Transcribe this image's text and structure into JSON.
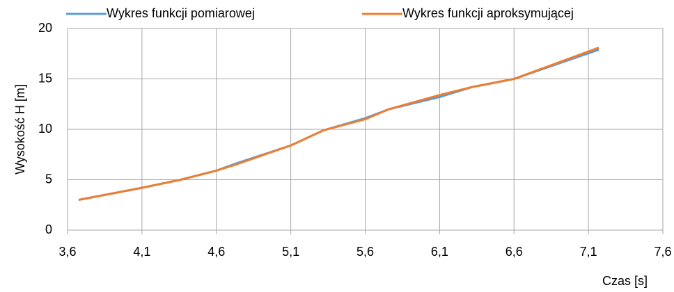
{
  "chart_data": {
    "type": "line",
    "x": [
      3.675,
      4.1,
      4.36,
      4.6,
      4.73,
      5.1,
      5.32,
      5.6,
      5.76,
      6.1,
      6.32,
      6.6,
      7.17
    ],
    "series": [
      {
        "name": "Wykres funkcji pomiarowej",
        "color": "#5b9bd5",
        "values": [
          3.0,
          4.2,
          5.0,
          5.9,
          6.6,
          8.4,
          9.9,
          11.1,
          12.0,
          13.2,
          14.2,
          15.0,
          17.9
        ]
      },
      {
        "name": "Wykres funkcji aproksymującej",
        "color": "#ed7d31",
        "values": [
          3.0,
          4.2,
          5.0,
          5.9,
          6.5,
          8.4,
          9.9,
          11.0,
          12.0,
          13.4,
          14.2,
          15.0,
          18.1
        ]
      }
    ],
    "xlim": [
      3.6,
      7.6
    ],
    "xticks": [
      {
        "value": 3.6,
        "label": "3,6"
      },
      {
        "value": 4.1,
        "label": "4,1"
      },
      {
        "value": 4.6,
        "label": "4,6"
      },
      {
        "value": 5.1,
        "label": "5,1"
      },
      {
        "value": 5.6,
        "label": "5,6"
      },
      {
        "value": 6.1,
        "label": "6,1"
      },
      {
        "value": 6.6,
        "label": "6,6"
      },
      {
        "value": 7.1,
        "label": "7,1"
      },
      {
        "value": 7.6,
        "label": "7,6"
      }
    ],
    "ylim": [
      0,
      20
    ],
    "yticks": [
      0,
      5,
      10,
      15,
      20
    ],
    "x_label": "Czas [s]",
    "y_label": "Wysokość H [m]",
    "grid": true,
    "legend": "top"
  }
}
